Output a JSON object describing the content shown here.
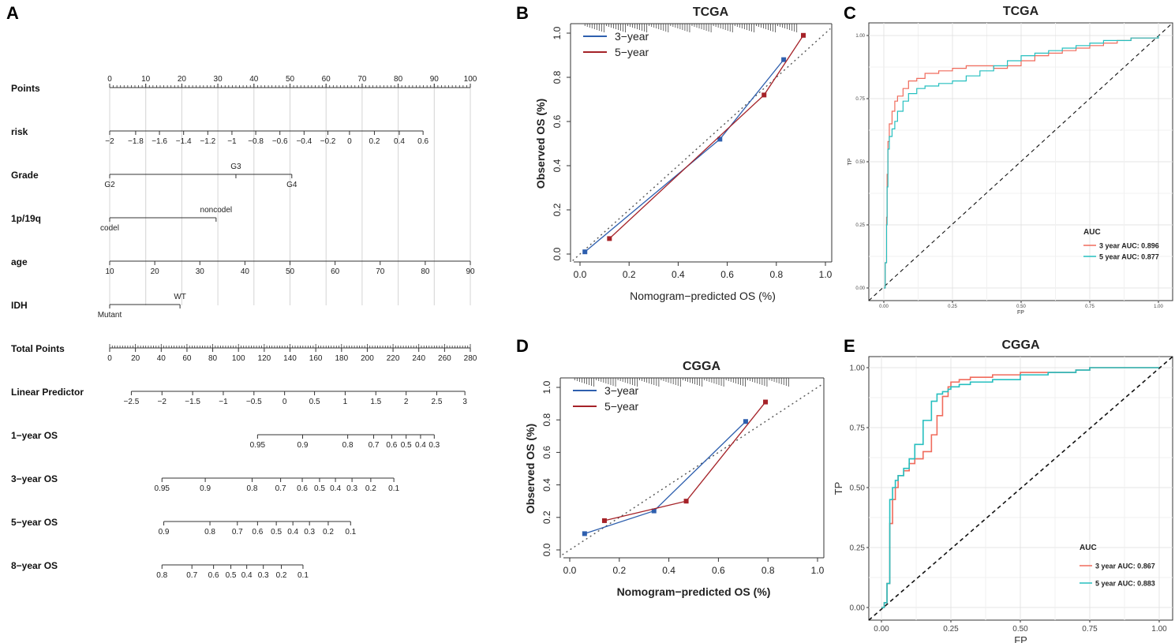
{
  "panel_letters": {
    "a": "A",
    "b": "B",
    "c": "C",
    "d": "D",
    "e": "E"
  },
  "colors": {
    "blue_cal": "#2e5fae",
    "red_cal": "#a52228",
    "roc_red": "#f06b5c",
    "roc_teal": "#26bfbf"
  },
  "chart_data": [
    {
      "type": "nomogram",
      "panel": "A",
      "rows": [
        {
          "label": "Points",
          "ticks": [
            {
              "t": "0",
              "p": 0
            },
            {
              "t": "10",
              "p": 10
            },
            {
              "t": "20",
              "p": 20
            },
            {
              "t": "30",
              "p": 30
            },
            {
              "t": "40",
              "p": 40
            },
            {
              "t": "50",
              "p": 50
            },
            {
              "t": "60",
              "p": 60
            },
            {
              "t": "70",
              "p": 70
            },
            {
              "t": "80",
              "p": 80
            },
            {
              "t": "90",
              "p": 90
            },
            {
              "t": "100",
              "p": 100
            }
          ]
        },
        {
          "label": "risk",
          "ticks": [
            {
              "t": "−2",
              "p": 0
            },
            {
              "t": "−1.8",
              "p": 7.2
            },
            {
              "t": "−1.6",
              "p": 13.8
            },
            {
              "t": "−1.4",
              "p": 20.5
            },
            {
              "t": "−1.2",
              "p": 27.2
            },
            {
              "t": "−1",
              "p": 33.9
            },
            {
              "t": "−0.8",
              "p": 40.5
            },
            {
              "t": "−0.6",
              "p": 47.2
            },
            {
              "t": "−0.4",
              "p": 53.9
            },
            {
              "t": "−0.2",
              "p": 60.5
            },
            {
              "t": "0",
              "p": 66.5
            },
            {
              "t": "0.2",
              "p": 73.4
            },
            {
              "t": "0.4",
              "p": 80.3
            },
            {
              "t": "0.6",
              "p": 86.9
            }
          ]
        },
        {
          "label": "Grade",
          "ticks": [
            {
              "t": "G2",
              "p": 0
            },
            {
              "t": "G3",
              "p": 35,
              "above": true
            },
            {
              "t": "G4",
              "p": 50.5
            }
          ]
        },
        {
          "label": "1p/19q",
          "ticks": [
            {
              "t": "codel",
              "p": 0
            },
            {
              "t": "noncodel",
              "p": 29.5,
              "above": true
            }
          ]
        },
        {
          "label": "age",
          "ticks": [
            {
              "t": "10",
              "p": 0
            },
            {
              "t": "20",
              "p": 12.5
            },
            {
              "t": "30",
              "p": 25
            },
            {
              "t": "40",
              "p": 37.5
            },
            {
              "t": "50",
              "p": 50
            },
            {
              "t": "60",
              "p": 62.5
            },
            {
              "t": "70",
              "p": 75
            },
            {
              "t": "80",
              "p": 87.5
            },
            {
              "t": "90",
              "p": 100
            }
          ]
        },
        {
          "label": "IDH",
          "ticks": [
            {
              "t": "Mutant",
              "p": 0
            },
            {
              "t": "WT",
              "p": 19.5,
              "above": true
            }
          ]
        },
        {
          "label": "Total Points",
          "ticks": [
            {
              "t": "0",
              "p": 0
            },
            {
              "t": "20",
              "p": 7.14
            },
            {
              "t": "40",
              "p": 14.29
            },
            {
              "t": "60",
              "p": 21.43
            },
            {
              "t": "80",
              "p": 28.57
            },
            {
              "t": "100",
              "p": 35.71
            },
            {
              "t": "120",
              "p": 42.86
            },
            {
              "t": "140",
              "p": 50
            },
            {
              "t": "160",
              "p": 57.14
            },
            {
              "t": "180",
              "p": 64.29
            },
            {
              "t": "200",
              "p": 71.43
            },
            {
              "t": "220",
              "p": 78.57
            },
            {
              "t": "240",
              "p": 85.71
            },
            {
              "t": "260",
              "p": 92.86
            },
            {
              "t": "280",
              "p": 100
            }
          ]
        },
        {
          "label": "Linear Predictor",
          "ticks": [
            {
              "t": "−2.5",
              "p": 6
            },
            {
              "t": "−2",
              "p": 14.5
            },
            {
              "t": "−1.5",
              "p": 23
            },
            {
              "t": "−1",
              "p": 31.5
            },
            {
              "t": "−0.5",
              "p": 40
            },
            {
              "t": "0",
              "p": 48.5
            },
            {
              "t": "0.5",
              "p": 56.8
            },
            {
              "t": "1",
              "p": 65.3
            },
            {
              "t": "1.5",
              "p": 73.8
            },
            {
              "t": "2",
              "p": 82.2
            },
            {
              "t": "2.5",
              "p": 90.7
            },
            {
              "t": "3",
              "p": 98.5
            }
          ]
        },
        {
          "label": "1−year OS",
          "ticks": [
            {
              "t": "0.95",
              "p": 41
            },
            {
              "t": "0.9",
              "p": 53.5
            },
            {
              "t": "0.8",
              "p": 66
            },
            {
              "t": "0.7",
              "p": 73.2
            },
            {
              "t": "0.6",
              "p": 78.2
            },
            {
              "t": "0.5",
              "p": 82.2
            },
            {
              "t": "0.4",
              "p": 86.2
            },
            {
              "t": "0.3",
              "p": 90
            }
          ]
        },
        {
          "label": "3−year OS",
          "ticks": [
            {
              "t": "0.95",
              "p": 14.5
            },
            {
              "t": "0.9",
              "p": 26.5
            },
            {
              "t": "0.8",
              "p": 39.5
            },
            {
              "t": "0.7",
              "p": 47.4
            },
            {
              "t": "0.6",
              "p": 53.4
            },
            {
              "t": "0.5",
              "p": 58.2
            },
            {
              "t": "0.4",
              "p": 62.6
            },
            {
              "t": "0.3",
              "p": 67.2
            },
            {
              "t": "0.2",
              "p": 72.4
            },
            {
              "t": "0.1",
              "p": 78.8
            }
          ]
        },
        {
          "label": "5−year OS",
          "ticks": [
            {
              "t": "0.9",
              "p": 15
            },
            {
              "t": "0.8",
              "p": 27.8
            },
            {
              "t": "0.7",
              "p": 35.4
            },
            {
              "t": "0.6",
              "p": 41
            },
            {
              "t": "0.5",
              "p": 46.2
            },
            {
              "t": "0.4",
              "p": 50.8
            },
            {
              "t": "0.3",
              "p": 55.4
            },
            {
              "t": "0.2",
              "p": 60.6
            },
            {
              "t": "0.1",
              "p": 66.8
            }
          ]
        },
        {
          "label": "8−year OS",
          "ticks": [
            {
              "t": "0.8",
              "p": 14.5
            },
            {
              "t": "0.7",
              "p": 22.8
            },
            {
              "t": "0.6",
              "p": 28.8
            },
            {
              "t": "0.5",
              "p": 33.6
            },
            {
              "t": "0.4",
              "p": 38
            },
            {
              "t": "0.3",
              "p": 42.6
            },
            {
              "t": "0.2",
              "p": 47.6
            },
            {
              "t": "0.1",
              "p": 53.6
            }
          ]
        }
      ]
    },
    {
      "type": "line",
      "panel": "B",
      "title": "TCGA",
      "xlabel": "Nomogram−predicted OS (%)",
      "ylabel": "Observed OS (%)",
      "xlim": [
        0,
        1
      ],
      "ylim": [
        0,
        1
      ],
      "xticks": [
        "0.0",
        "0.2",
        "0.4",
        "0.6",
        "0.8",
        "1.0"
      ],
      "yticks": [
        "0.0",
        "0.2",
        "0.4",
        "0.6",
        "0.8",
        "1.0"
      ],
      "series": [
        {
          "name": "3−year",
          "x": [
            0.02,
            0.57,
            0.83
          ],
          "y": [
            0.01,
            0.52,
            0.88
          ]
        },
        {
          "name": "5−year",
          "x": [
            0.12,
            0.75,
            0.91
          ],
          "y": [
            0.07,
            0.72,
            0.99
          ]
        }
      ]
    },
    {
      "type": "line",
      "panel": "C",
      "title": "TCGA",
      "xlabel": "FP",
      "ylabel": "TP",
      "xticks": [
        "0.00",
        "0.25",
        "0.50",
        "0.75",
        "1.00"
      ],
      "yticks": [
        "0.00",
        "0.25",
        "0.50",
        "0.75",
        "1.00"
      ],
      "legend_title": "AUC",
      "series": [
        {
          "name": "3 year AUC: 0.896",
          "x": [
            0,
            0.005,
            0.01,
            0.012,
            0.015,
            0.02,
            0.03,
            0.04,
            0.05,
            0.07,
            0.09,
            0.12,
            0.15,
            0.2,
            0.25,
            0.3,
            0.35,
            0.4,
            0.45,
            0.5,
            0.55,
            0.6,
            0.65,
            0.7,
            0.75,
            0.8,
            0.85,
            0.9,
            0.95,
            1
          ],
          "y": [
            0,
            0.1,
            0.28,
            0.45,
            0.58,
            0.65,
            0.7,
            0.74,
            0.76,
            0.79,
            0.82,
            0.83,
            0.85,
            0.86,
            0.87,
            0.88,
            0.88,
            0.87,
            0.88,
            0.9,
            0.92,
            0.93,
            0.94,
            0.95,
            0.96,
            0.97,
            0.98,
            0.99,
            0.99,
            1
          ]
        },
        {
          "name": "5 year AUC: 0.877",
          "x": [
            0,
            0.005,
            0.01,
            0.012,
            0.015,
            0.02,
            0.03,
            0.04,
            0.05,
            0.07,
            0.09,
            0.12,
            0.15,
            0.2,
            0.25,
            0.3,
            0.35,
            0.4,
            0.45,
            0.5,
            0.55,
            0.6,
            0.65,
            0.7,
            0.75,
            0.8,
            0.85,
            0.9,
            0.95,
            1
          ],
          "y": [
            0,
            0.1,
            0.25,
            0.4,
            0.55,
            0.6,
            0.63,
            0.66,
            0.7,
            0.74,
            0.77,
            0.79,
            0.8,
            0.81,
            0.82,
            0.84,
            0.86,
            0.88,
            0.9,
            0.92,
            0.93,
            0.94,
            0.95,
            0.96,
            0.97,
            0.98,
            0.98,
            0.99,
            0.99,
            1
          ]
        }
      ]
    },
    {
      "type": "line",
      "panel": "D",
      "title": "CGGA",
      "xlabel": "Nomogram−predicted OS (%)",
      "ylabel": "Observed OS (%)",
      "xlim": [
        0,
        1
      ],
      "ylim": [
        0,
        1
      ],
      "xticks": [
        "0.0",
        "0.2",
        "0.4",
        "0.6",
        "0.8",
        "1.0"
      ],
      "yticks": [
        "0.0",
        "0.2",
        "0.4",
        "0.6",
        "0.8",
        "1.0"
      ],
      "series": [
        {
          "name": "3−year",
          "x": [
            0.06,
            0.34,
            0.71
          ],
          "y": [
            0.1,
            0.24,
            0.79
          ]
        },
        {
          "name": "5−year",
          "x": [
            0.14,
            0.47,
            0.79
          ],
          "y": [
            0.18,
            0.3,
            0.91
          ]
        }
      ]
    },
    {
      "type": "line",
      "panel": "E",
      "title": "CGGA",
      "xlabel": "FP",
      "ylabel": "TP",
      "xticks": [
        "0.00",
        "0.25",
        "0.50",
        "0.75",
        "1.00"
      ],
      "yticks": [
        "0.00",
        "0.25",
        "0.50",
        "0.75",
        "1.00"
      ],
      "legend_title": "AUC",
      "series": [
        {
          "name": "3 year AUC: 0.867",
          "x": [
            0,
            0.01,
            0.02,
            0.03,
            0.04,
            0.05,
            0.06,
            0.08,
            0.1,
            0.12,
            0.15,
            0.18,
            0.2,
            0.22,
            0.24,
            0.25,
            0.28,
            0.32,
            0.4,
            0.5,
            0.6,
            0.7,
            0.75,
            0.85,
            1
          ],
          "y": [
            0,
            0.02,
            0.1,
            0.35,
            0.45,
            0.5,
            0.55,
            0.57,
            0.6,
            0.62,
            0.65,
            0.72,
            0.8,
            0.88,
            0.92,
            0.94,
            0.95,
            0.96,
            0.97,
            0.98,
            0.98,
            0.99,
            1,
            1,
            1
          ]
        },
        {
          "name": "5 year AUC: 0.883",
          "x": [
            0,
            0.01,
            0.02,
            0.03,
            0.04,
            0.05,
            0.06,
            0.08,
            0.1,
            0.12,
            0.15,
            0.18,
            0.2,
            0.22,
            0.24,
            0.25,
            0.28,
            0.32,
            0.4,
            0.5,
            0.6,
            0.7,
            0.75,
            0.85,
            1
          ],
          "y": [
            0,
            0.02,
            0.1,
            0.45,
            0.5,
            0.53,
            0.55,
            0.58,
            0.62,
            0.68,
            0.78,
            0.86,
            0.89,
            0.9,
            0.91,
            0.92,
            0.93,
            0.94,
            0.95,
            0.97,
            0.98,
            0.99,
            1,
            1,
            1
          ]
        }
      ]
    }
  ]
}
